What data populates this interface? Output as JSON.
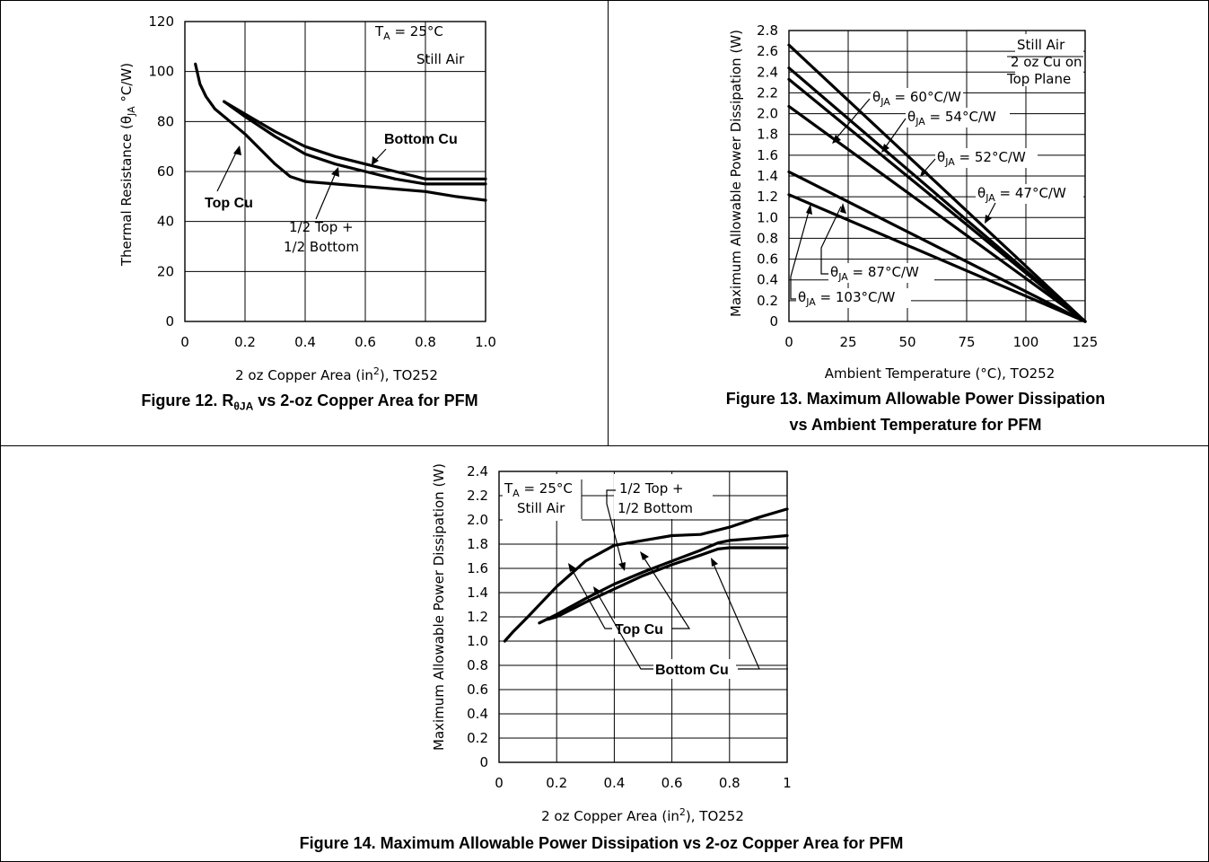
{
  "figures": {
    "fig12": {
      "caption_prefix": "Figure 12. R",
      "caption_sub": "θJA",
      "caption_suffix": " vs 2-oz Copper Area for PFM"
    },
    "fig13": {
      "caption_line1": "Figure 13. Maximum Allowable Power Dissipation",
      "caption_line2": "vs Ambient Temperature for PFM"
    },
    "fig14": {
      "caption": "Figure 14. Maximum Allowable Power Dissipation vs 2-oz Copper Area for PFM"
    }
  },
  "chart_data": [
    {
      "id": "fig12",
      "type": "line",
      "xlabel": {
        "pre": "2 oz Copper Area (in",
        "sup": "2",
        "post": "), TO252"
      },
      "ylabel": {
        "pre": "Thermal Resistance (θ",
        "sub": "JA",
        "post": " °C/W)"
      },
      "xlim": [
        0,
        1.0
      ],
      "ylim": [
        0,
        120
      ],
      "xticks": [
        0,
        0.2,
        0.4,
        0.6,
        0.8,
        1.0
      ],
      "xtick_labels": [
        "0",
        "0.2",
        "0.4",
        "0.6",
        "0.8",
        "1.0"
      ],
      "yticks": [
        0,
        20,
        40,
        60,
        80,
        100,
        120
      ],
      "ytick_labels": [
        "0",
        "20",
        "40",
        "60",
        "80",
        "100",
        "120"
      ],
      "grid": true,
      "annotations": {
        "ta_pre": "T",
        "ta_sub": "A",
        "ta_post": " = 25°C",
        "still_air": "Still Air",
        "bottom_cu": "Bottom Cu",
        "top_cu": "Top Cu",
        "half_top": "1/2 Top +",
        "half_bottom": "1/2 Bottom"
      },
      "series": [
        {
          "name": "Top Cu",
          "x": [
            0.035,
            0.05,
            0.07,
            0.1,
            0.15,
            0.2,
            0.3,
            0.35,
            0.4,
            0.5,
            0.6,
            0.7,
            0.8,
            0.9,
            1.0
          ],
          "y": [
            103,
            95,
            90,
            85,
            80,
            75,
            63,
            58,
            56,
            55,
            54,
            53,
            52,
            50,
            48.5
          ]
        },
        {
          "name": "Bottom Cu",
          "x": [
            0.13,
            0.2,
            0.3,
            0.4,
            0.5,
            0.6,
            0.7,
            0.8,
            0.9,
            1.0
          ],
          "y": [
            88,
            83,
            76,
            70,
            66,
            63,
            60,
            57,
            57,
            57
          ]
        },
        {
          "name": "1/2 Top + 1/2 Bottom",
          "x": [
            0.13,
            0.2,
            0.3,
            0.4,
            0.5,
            0.6,
            0.7,
            0.8,
            0.9,
            1.0
          ],
          "y": [
            88,
            82,
            74,
            67,
            63,
            60,
            57,
            55,
            55,
            55
          ]
        }
      ]
    },
    {
      "id": "fig13",
      "type": "line",
      "xlabel": {
        "pre": "Ambient Temperature (°C), TO252"
      },
      "ylabel": {
        "pre": "Maximum Allowable Power Dissipation (W)"
      },
      "xlim": [
        0,
        125
      ],
      "ylim": [
        0,
        2.8
      ],
      "xticks": [
        0,
        25,
        50,
        75,
        100,
        125
      ],
      "xtick_labels": [
        "0",
        "25",
        "50",
        "75",
        "100",
        "125"
      ],
      "yticks": [
        0,
        0.2,
        0.4,
        0.6,
        0.8,
        1.0,
        1.2,
        1.4,
        1.6,
        1.8,
        2.0,
        2.2,
        2.4,
        2.6,
        2.8
      ],
      "ytick_labels": [
        "0",
        "0.2",
        "0.4",
        "0.6",
        "0.8",
        "1.0",
        "1.2",
        "1.4",
        "1.6",
        "1.8",
        "2.0",
        "2.2",
        "2.4",
        "2.6",
        "2.8"
      ],
      "grid": true,
      "annotations": {
        "still_air": "Still Air",
        "oz_cu": "2 oz Cu on",
        "top_plane": "Top Plane",
        "theta": "θ",
        "theta_sub": "JA",
        "r60": " = 60°C/W",
        "r54": " = 54°C/W",
        "r52": " = 52°C/W",
        "r47": " = 47°C/W",
        "r87": " = 87°C/W",
        "r103": " = 103°C/W"
      },
      "series": [
        {
          "name": "θJA = 47°C/W",
          "x": [
            0,
            125
          ],
          "y": [
            2.66,
            0
          ]
        },
        {
          "name": "θJA = 52°C/W",
          "x": [
            0,
            125
          ],
          "y": [
            2.44,
            0
          ]
        },
        {
          "name": "θJA = 54°C/W",
          "x": [
            0,
            125
          ],
          "y": [
            2.33,
            0
          ]
        },
        {
          "name": "θJA = 60°C/W",
          "x": [
            0,
            125
          ],
          "y": [
            2.07,
            0
          ]
        },
        {
          "name": "θJA = 87°C/W",
          "x": [
            0,
            125
          ],
          "y": [
            1.44,
            0
          ]
        },
        {
          "name": "θJA = 103°C/W",
          "x": [
            0,
            125
          ],
          "y": [
            1.22,
            0
          ]
        }
      ]
    },
    {
      "id": "fig14",
      "type": "line",
      "xlabel": {
        "pre": "2 oz Copper Area (in",
        "sup": "2",
        "post": "), TO252"
      },
      "ylabel": {
        "pre": "Maximum Allowable Power Dissipation (W)"
      },
      "xlim": [
        0,
        1
      ],
      "ylim": [
        0,
        2.4
      ],
      "xticks": [
        0,
        0.2,
        0.4,
        0.6,
        0.8,
        1
      ],
      "xtick_labels": [
        "0",
        "0.2",
        "0.4",
        "0.6",
        "0.8",
        "1"
      ],
      "yticks": [
        0,
        0.2,
        0.4,
        0.6,
        0.8,
        1.0,
        1.2,
        1.4,
        1.6,
        1.8,
        2.0,
        2.2,
        2.4
      ],
      "ytick_labels": [
        "0",
        "0.2",
        "0.4",
        "0.6",
        "0.8",
        "1.0",
        "1.2",
        "1.4",
        "1.6",
        "1.8",
        "2.0",
        "2.2",
        "2.4"
      ],
      "grid": true,
      "annotations": {
        "ta_pre": "T",
        "ta_sub": "A",
        "ta_post": " = 25°C",
        "still_air": "Still Air",
        "half_top": "1/2 Top +",
        "half_bottom": "1/2 Bottom",
        "top_cu": "Top Cu",
        "bottom_cu": "Bottom Cu"
      },
      "series": [
        {
          "name": "1/2 Top + 1/2 Bottom",
          "x": [
            0.02,
            0.05,
            0.1,
            0.2,
            0.3,
            0.4,
            0.5,
            0.6,
            0.7,
            0.8,
            0.9,
            1.0
          ],
          "y": [
            1.0,
            1.08,
            1.2,
            1.45,
            1.66,
            1.79,
            1.83,
            1.87,
            1.88,
            1.94,
            2.02,
            2.09
          ]
        },
        {
          "name": "Top Cu",
          "x": [
            0.14,
            0.2,
            0.3,
            0.4,
            0.5,
            0.6,
            0.7,
            0.76,
            0.8,
            0.9,
            1.0
          ],
          "y": [
            1.15,
            1.22,
            1.35,
            1.47,
            1.57,
            1.66,
            1.75,
            1.81,
            1.83,
            1.85,
            1.87
          ]
        },
        {
          "name": "Bottom Cu",
          "x": [
            0.17,
            0.2,
            0.3,
            0.4,
            0.5,
            0.6,
            0.7,
            0.76,
            0.8,
            0.9,
            1.0
          ],
          "y": [
            1.18,
            1.2,
            1.32,
            1.43,
            1.54,
            1.63,
            1.71,
            1.76,
            1.77,
            1.77,
            1.77
          ]
        }
      ]
    }
  ]
}
